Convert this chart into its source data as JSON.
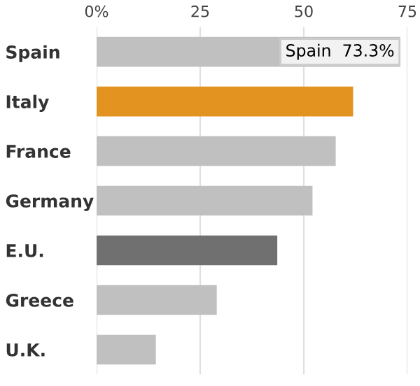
{
  "chart_data": {
    "type": "bar",
    "orientation": "horizontal",
    "categories": [
      "Spain",
      "Italy",
      "France",
      "Germany",
      "E.U.",
      "Greece",
      "U.K."
    ],
    "values": [
      73.3,
      61.9,
      57.7,
      52.1,
      43.6,
      29.0,
      14.3
    ],
    "colors": [
      "#c0c0c0",
      "#e39420",
      "#c0c0c0",
      "#c0c0c0",
      "#707070",
      "#c0c0c0",
      "#c0c0c0"
    ],
    "xlim": [
      0,
      75
    ],
    "xticks": [
      {
        "value": 0,
        "label": "0%"
      },
      25,
      50,
      75
    ],
    "grid": "x",
    "legend": false,
    "annotations": [
      {
        "text": "Spain  73.3%",
        "x": 73.3,
        "y": "Spain"
      }
    ]
  }
}
